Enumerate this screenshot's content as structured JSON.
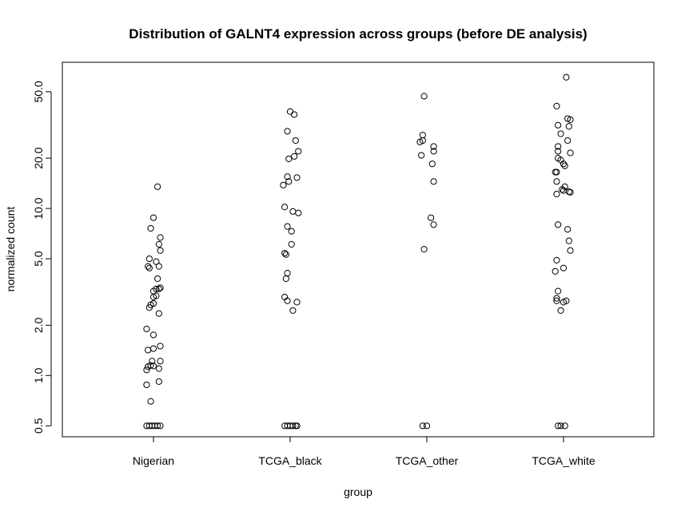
{
  "chart_data": {
    "type": "scatter",
    "title": "Distribution of GALNT4 expression across groups (before DE analysis)",
    "xlabel": "group",
    "ylabel": "normalized count",
    "y_scale": "log",
    "ylim": [
      0.43,
      75
    ],
    "yticks": [
      {
        "value": 0.5,
        "label": "0.5"
      },
      {
        "value": 1,
        "label": "1.0"
      },
      {
        "value": 2,
        "label": "2.0"
      },
      {
        "value": 5,
        "label": "5.0"
      },
      {
        "value": 10,
        "label": "10.0"
      },
      {
        "value": 20,
        "label": "20.0"
      },
      {
        "value": 50,
        "label": "50.0"
      }
    ],
    "categories": [
      "Nigerian",
      "TCGA_black",
      "TCGA_other",
      "TCGA_white"
    ],
    "grid": false,
    "marker": "open-circle",
    "points": [
      {
        "group": "Nigerian",
        "jitter": 0.03,
        "y": 13.5
      },
      {
        "group": "Nigerian",
        "jitter": 0.0,
        "y": 8.8
      },
      {
        "group": "Nigerian",
        "jitter": -0.02,
        "y": 7.6
      },
      {
        "group": "Nigerian",
        "jitter": 0.05,
        "y": 6.7
      },
      {
        "group": "Nigerian",
        "jitter": 0.04,
        "y": 6.1
      },
      {
        "group": "Nigerian",
        "jitter": 0.05,
        "y": 5.6
      },
      {
        "group": "Nigerian",
        "jitter": -0.03,
        "y": 5.0
      },
      {
        "group": "Nigerian",
        "jitter": 0.02,
        "y": 4.8
      },
      {
        "group": "Nigerian",
        "jitter": -0.04,
        "y": 4.5
      },
      {
        "group": "Nigerian",
        "jitter": -0.03,
        "y": 4.4
      },
      {
        "group": "Nigerian",
        "jitter": 0.04,
        "y": 4.5
      },
      {
        "group": "Nigerian",
        "jitter": 0.03,
        "y": 3.8
      },
      {
        "group": "Nigerian",
        "jitter": 0.05,
        "y": 3.35
      },
      {
        "group": "Nigerian",
        "jitter": 0.04,
        "y": 3.3
      },
      {
        "group": "Nigerian",
        "jitter": 0.02,
        "y": 3.3
      },
      {
        "group": "Nigerian",
        "jitter": 0.0,
        "y": 3.2
      },
      {
        "group": "Nigerian",
        "jitter": 0.02,
        "y": 3.0
      },
      {
        "group": "Nigerian",
        "jitter": 0.0,
        "y": 2.95
      },
      {
        "group": "Nigerian",
        "jitter": 0.0,
        "y": 2.7
      },
      {
        "group": "Nigerian",
        "jitter": -0.02,
        "y": 2.65
      },
      {
        "group": "Nigerian",
        "jitter": -0.03,
        "y": 2.55
      },
      {
        "group": "Nigerian",
        "jitter": 0.04,
        "y": 2.35
      },
      {
        "group": "Nigerian",
        "jitter": -0.05,
        "y": 1.9
      },
      {
        "group": "Nigerian",
        "jitter": 0.0,
        "y": 1.75
      },
      {
        "group": "Nigerian",
        "jitter": 0.05,
        "y": 1.5
      },
      {
        "group": "Nigerian",
        "jitter": 0.0,
        "y": 1.45
      },
      {
        "group": "Nigerian",
        "jitter": -0.04,
        "y": 1.42
      },
      {
        "group": "Nigerian",
        "jitter": 0.05,
        "y": 1.22
      },
      {
        "group": "Nigerian",
        "jitter": -0.01,
        "y": 1.22
      },
      {
        "group": "Nigerian",
        "jitter": -0.04,
        "y": 1.13
      },
      {
        "group": "Nigerian",
        "jitter": -0.02,
        "y": 1.15
      },
      {
        "group": "Nigerian",
        "jitter": 0.0,
        "y": 1.14
      },
      {
        "group": "Nigerian",
        "jitter": -0.05,
        "y": 1.08
      },
      {
        "group": "Nigerian",
        "jitter": 0.04,
        "y": 1.1
      },
      {
        "group": "Nigerian",
        "jitter": 0.04,
        "y": 0.92
      },
      {
        "group": "Nigerian",
        "jitter": -0.05,
        "y": 0.88
      },
      {
        "group": "Nigerian",
        "jitter": -0.02,
        "y": 0.7
      },
      {
        "group": "Nigerian",
        "jitter": -0.05,
        "y": 0.5
      },
      {
        "group": "Nigerian",
        "jitter": -0.03,
        "y": 0.5
      },
      {
        "group": "Nigerian",
        "jitter": -0.01,
        "y": 0.5
      },
      {
        "group": "Nigerian",
        "jitter": 0.01,
        "y": 0.5
      },
      {
        "group": "Nigerian",
        "jitter": 0.03,
        "y": 0.5
      },
      {
        "group": "Nigerian",
        "jitter": 0.05,
        "y": 0.5
      },
      {
        "group": "TCGA_black",
        "jitter": 0.0,
        "y": 38.0
      },
      {
        "group": "TCGA_black",
        "jitter": 0.03,
        "y": 36.5
      },
      {
        "group": "TCGA_black",
        "jitter": -0.02,
        "y": 29.0
      },
      {
        "group": "TCGA_black",
        "jitter": 0.04,
        "y": 25.5
      },
      {
        "group": "TCGA_black",
        "jitter": 0.06,
        "y": 22.0
      },
      {
        "group": "TCGA_black",
        "jitter": 0.03,
        "y": 20.5
      },
      {
        "group": "TCGA_black",
        "jitter": -0.01,
        "y": 19.8
      },
      {
        "group": "TCGA_black",
        "jitter": -0.02,
        "y": 15.5
      },
      {
        "group": "TCGA_black",
        "jitter": 0.05,
        "y": 15.3
      },
      {
        "group": "TCGA_black",
        "jitter": -0.01,
        "y": 14.5
      },
      {
        "group": "TCGA_black",
        "jitter": -0.05,
        "y": 13.8
      },
      {
        "group": "TCGA_black",
        "jitter": -0.04,
        "y": 10.2
      },
      {
        "group": "TCGA_black",
        "jitter": 0.02,
        "y": 9.6
      },
      {
        "group": "TCGA_black",
        "jitter": 0.06,
        "y": 9.4
      },
      {
        "group": "TCGA_black",
        "jitter": -0.02,
        "y": 7.8
      },
      {
        "group": "TCGA_black",
        "jitter": 0.01,
        "y": 7.3
      },
      {
        "group": "TCGA_black",
        "jitter": 0.01,
        "y": 6.1
      },
      {
        "group": "TCGA_black",
        "jitter": -0.04,
        "y": 5.4
      },
      {
        "group": "TCGA_black",
        "jitter": -0.03,
        "y": 5.3
      },
      {
        "group": "TCGA_black",
        "jitter": -0.02,
        "y": 4.1
      },
      {
        "group": "TCGA_black",
        "jitter": -0.03,
        "y": 3.8
      },
      {
        "group": "TCGA_black",
        "jitter": -0.04,
        "y": 2.95
      },
      {
        "group": "TCGA_black",
        "jitter": -0.02,
        "y": 2.8
      },
      {
        "group": "TCGA_black",
        "jitter": 0.05,
        "y": 2.75
      },
      {
        "group": "TCGA_black",
        "jitter": 0.02,
        "y": 2.45
      },
      {
        "group": "TCGA_black",
        "jitter": -0.04,
        "y": 0.5
      },
      {
        "group": "TCGA_black",
        "jitter": -0.02,
        "y": 0.5
      },
      {
        "group": "TCGA_black",
        "jitter": 0.0,
        "y": 0.5
      },
      {
        "group": "TCGA_black",
        "jitter": 0.02,
        "y": 0.5
      },
      {
        "group": "TCGA_black",
        "jitter": 0.04,
        "y": 0.5
      },
      {
        "group": "TCGA_black",
        "jitter": 0.05,
        "y": 0.5
      },
      {
        "group": "TCGA_other",
        "jitter": -0.02,
        "y": 47.0
      },
      {
        "group": "TCGA_other",
        "jitter": -0.03,
        "y": 27.5
      },
      {
        "group": "TCGA_other",
        "jitter": -0.03,
        "y": 25.5
      },
      {
        "group": "TCGA_other",
        "jitter": -0.05,
        "y": 25.0
      },
      {
        "group": "TCGA_other",
        "jitter": 0.05,
        "y": 23.5
      },
      {
        "group": "TCGA_other",
        "jitter": 0.05,
        "y": 22.0
      },
      {
        "group": "TCGA_other",
        "jitter": -0.04,
        "y": 20.8
      },
      {
        "group": "TCGA_other",
        "jitter": 0.04,
        "y": 18.5
      },
      {
        "group": "TCGA_other",
        "jitter": 0.05,
        "y": 14.5
      },
      {
        "group": "TCGA_other",
        "jitter": 0.03,
        "y": 8.8
      },
      {
        "group": "TCGA_other",
        "jitter": 0.05,
        "y": 8.0
      },
      {
        "group": "TCGA_other",
        "jitter": -0.02,
        "y": 5.7
      },
      {
        "group": "TCGA_other",
        "jitter": -0.03,
        "y": 0.5
      },
      {
        "group": "TCGA_other",
        "jitter": 0.0,
        "y": 0.5
      },
      {
        "group": "TCGA_white",
        "jitter": 0.02,
        "y": 61.0
      },
      {
        "group": "TCGA_white",
        "jitter": -0.05,
        "y": 41.0
      },
      {
        "group": "TCGA_white",
        "jitter": 0.03,
        "y": 34.5
      },
      {
        "group": "TCGA_white",
        "jitter": 0.05,
        "y": 34.0
      },
      {
        "group": "TCGA_white",
        "jitter": -0.04,
        "y": 31.5
      },
      {
        "group": "TCGA_white",
        "jitter": 0.04,
        "y": 31.0
      },
      {
        "group": "TCGA_white",
        "jitter": -0.02,
        "y": 28.0
      },
      {
        "group": "TCGA_white",
        "jitter": 0.03,
        "y": 25.5
      },
      {
        "group": "TCGA_white",
        "jitter": -0.04,
        "y": 23.5
      },
      {
        "group": "TCGA_white",
        "jitter": -0.04,
        "y": 22.0
      },
      {
        "group": "TCGA_white",
        "jitter": 0.05,
        "y": 21.5
      },
      {
        "group": "TCGA_white",
        "jitter": -0.04,
        "y": 20.0
      },
      {
        "group": "TCGA_white",
        "jitter": -0.02,
        "y": 19.5
      },
      {
        "group": "TCGA_white",
        "jitter": 0.0,
        "y": 18.5
      },
      {
        "group": "TCGA_white",
        "jitter": 0.01,
        "y": 18.0
      },
      {
        "group": "TCGA_white",
        "jitter": -0.06,
        "y": 16.5
      },
      {
        "group": "TCGA_white",
        "jitter": -0.05,
        "y": 16.5
      },
      {
        "group": "TCGA_white",
        "jitter": -0.05,
        "y": 14.5
      },
      {
        "group": "TCGA_white",
        "jitter": -0.01,
        "y": 13.0
      },
      {
        "group": "TCGA_white",
        "jitter": 0.0,
        "y": 12.8
      },
      {
        "group": "TCGA_white",
        "jitter": 0.01,
        "y": 13.5
      },
      {
        "group": "TCGA_white",
        "jitter": 0.04,
        "y": 12.6
      },
      {
        "group": "TCGA_white",
        "jitter": 0.05,
        "y": 12.5
      },
      {
        "group": "TCGA_white",
        "jitter": -0.05,
        "y": 12.2
      },
      {
        "group": "TCGA_white",
        "jitter": -0.04,
        "y": 8.0
      },
      {
        "group": "TCGA_white",
        "jitter": 0.03,
        "y": 7.5
      },
      {
        "group": "TCGA_white",
        "jitter": 0.04,
        "y": 6.4
      },
      {
        "group": "TCGA_white",
        "jitter": 0.05,
        "y": 5.6
      },
      {
        "group": "TCGA_white",
        "jitter": -0.05,
        "y": 4.9
      },
      {
        "group": "TCGA_white",
        "jitter": 0.0,
        "y": 4.4
      },
      {
        "group": "TCGA_white",
        "jitter": -0.06,
        "y": 4.2
      },
      {
        "group": "TCGA_white",
        "jitter": -0.04,
        "y": 3.2
      },
      {
        "group": "TCGA_white",
        "jitter": -0.05,
        "y": 2.9
      },
      {
        "group": "TCGA_white",
        "jitter": -0.05,
        "y": 2.8
      },
      {
        "group": "TCGA_white",
        "jitter": 0.0,
        "y": 2.75
      },
      {
        "group": "TCGA_white",
        "jitter": 0.02,
        "y": 2.8
      },
      {
        "group": "TCGA_white",
        "jitter": -0.02,
        "y": 2.45
      },
      {
        "group": "TCGA_white",
        "jitter": -0.04,
        "y": 0.5
      },
      {
        "group": "TCGA_white",
        "jitter": -0.02,
        "y": 0.5
      },
      {
        "group": "TCGA_white",
        "jitter": 0.01,
        "y": 0.5
      }
    ]
  }
}
